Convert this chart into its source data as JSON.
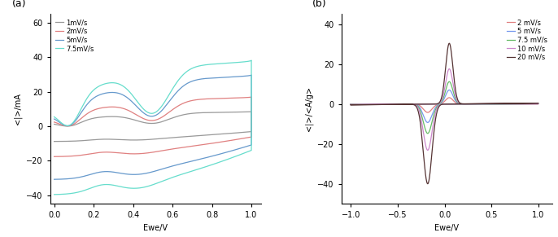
{
  "panel_a": {
    "label": "(a)",
    "xlabel": "Ewe/V",
    "ylabel": "<|>/mA",
    "xlim": [
      -0.02,
      1.05
    ],
    "ylim": [
      -45,
      65
    ],
    "yticks": [
      -40,
      -20,
      0,
      20,
      40,
      60
    ],
    "xticks": [
      0.0,
      0.2,
      0.4,
      0.6,
      0.8,
      1.0
    ],
    "curves": [
      {
        "label": "1mV/s",
        "color": "#999999",
        "amp": 10.0
      },
      {
        "label": "2mV/s",
        "color": "#e08080",
        "amp": 20.0
      },
      {
        "label": "5mV/s",
        "color": "#6699cc",
        "amp": 35.0
      },
      {
        "label": "7.5mV/s",
        "color": "#66ddcc",
        "amp": 45.0
      }
    ]
  },
  "panel_b": {
    "label": "(b)",
    "xlabel": "Ewe/V",
    "ylabel": "<|>/<A/g>",
    "xlim": [
      -1.1,
      1.15
    ],
    "ylim": [
      -50,
      45
    ],
    "yticks": [
      -40,
      -20,
      0,
      20,
      40
    ],
    "xticks": [
      -1.0,
      -0.5,
      0.0,
      0.5,
      1.0
    ],
    "curves": [
      {
        "label": "2 mV/s",
        "color": "#e08080",
        "amp": 1.0
      },
      {
        "label": "5 mV/s",
        "color": "#7799ee",
        "amp": 2.2
      },
      {
        "label": "7.5 mV/s",
        "color": "#66bb66",
        "amp": 3.5
      },
      {
        "label": "10 mV/s",
        "color": "#cc88cc",
        "amp": 5.5
      },
      {
        "label": "20 mV/s",
        "color": "#553333",
        "amp": 9.5
      }
    ]
  },
  "bg_color": "#ffffff",
  "fontsize": 7,
  "legend_fontsize": 6
}
